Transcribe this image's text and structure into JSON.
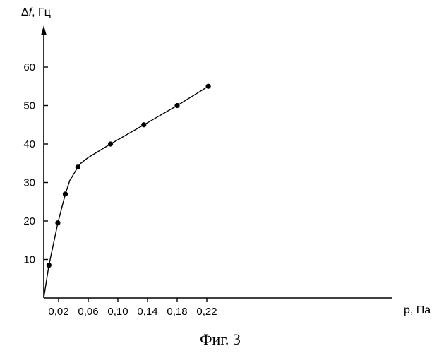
{
  "chart_data": {
    "type": "line",
    "title": "",
    "xlabel": "p, Па",
    "ylabel_prefix": "Δ",
    "ylabel_var": "f",
    "ylabel_unit": ", Гц",
    "xlim": [
      0,
      0.24
    ],
    "ylim": [
      0,
      70
    ],
    "x_ticks": [
      0.02,
      0.06,
      0.1,
      0.14,
      0.18,
      0.22
    ],
    "x_tick_labels": [
      "0,02",
      "0,06",
      "0,10",
      "0,14",
      "0,18",
      "0,22"
    ],
    "y_ticks": [
      10,
      20,
      30,
      40,
      50,
      60
    ],
    "y_tick_labels": [
      "10",
      "20",
      "30",
      "40",
      "50",
      "60"
    ],
    "curve": {
      "x": [
        0,
        0.007,
        0.019,
        0.029,
        0.035,
        0.046,
        0.05,
        0.06,
        0.09,
        0.135,
        0.18,
        0.222
      ],
      "y": [
        0,
        8.5,
        19.5,
        27,
        30.5,
        34,
        35,
        36.5,
        40,
        45,
        50,
        55
      ]
    },
    "points": {
      "x": [
        0.007,
        0.019,
        0.029,
        0.046,
        0.09,
        0.135,
        0.18,
        0.222
      ],
      "y": [
        8.5,
        19.5,
        27,
        34,
        40,
        45,
        50,
        55
      ]
    },
    "grid": false,
    "legend": "none",
    "line_color": "#000000",
    "marker_color": "#000000"
  },
  "caption": "Фиг. 3"
}
